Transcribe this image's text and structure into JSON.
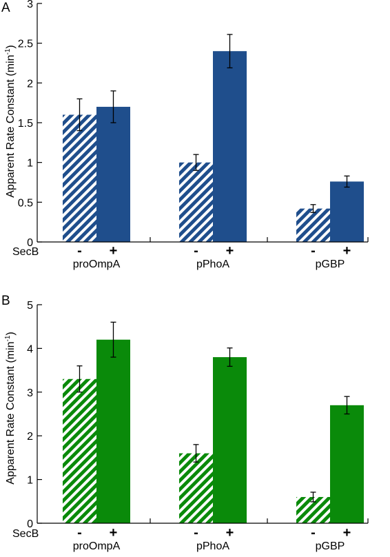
{
  "chart_data": [
    {
      "type": "bar",
      "panel_label": "A",
      "ylabel": "Apparent Rate Constant (min",
      "ylabel_sup": "-1",
      "ylabel_close": ")",
      "ylim": [
        0,
        3
      ],
      "yticks": [
        "0",
        "0.5",
        "1",
        "1.5",
        "2",
        "2.5",
        "3"
      ],
      "yticks_values": [
        0,
        0.5,
        1,
        1.5,
        2,
        2.5,
        3
      ],
      "categories": [
        "proOmpA",
        "pPhoA",
        "pGBP"
      ],
      "row_label": "SecB",
      "condition_labels": [
        "-",
        "+"
      ],
      "colors": {
        "solid": "#1f4e8c",
        "hatch_bg": "#ffffff"
      },
      "series": [
        {
          "condition": "-",
          "pattern": "hatched",
          "values": [
            1.6,
            1.0,
            0.42
          ],
          "errors": [
            0.2,
            0.1,
            0.05
          ]
        },
        {
          "condition": "+",
          "pattern": "solid",
          "values": [
            1.7,
            2.4,
            0.76
          ],
          "errors": [
            0.2,
            0.21,
            0.07
          ]
        }
      ]
    },
    {
      "type": "bar",
      "panel_label": "B",
      "ylabel": "Apparent Rate Constant (min",
      "ylabel_sup": "-1",
      "ylabel_close": ")",
      "ylim": [
        0,
        5
      ],
      "yticks": [
        "0",
        "1",
        "2",
        "3",
        "4",
        "5"
      ],
      "yticks_values": [
        0,
        1,
        2,
        3,
        4,
        5
      ],
      "categories": [
        "proOmpA",
        "pPhoA",
        "pGBP"
      ],
      "row_label": "SecB",
      "condition_labels": [
        "-",
        "+"
      ],
      "colors": {
        "solid": "#0a8a0a",
        "hatch_bg": "#ffffff"
      },
      "series": [
        {
          "condition": "-",
          "pattern": "hatched",
          "values": [
            3.3,
            1.6,
            0.6
          ],
          "errors": [
            0.3,
            0.2,
            0.11
          ]
        },
        {
          "condition": "+",
          "pattern": "solid",
          "values": [
            4.2,
            3.8,
            2.7
          ],
          "errors": [
            0.4,
            0.21,
            0.2
          ]
        }
      ]
    }
  ]
}
